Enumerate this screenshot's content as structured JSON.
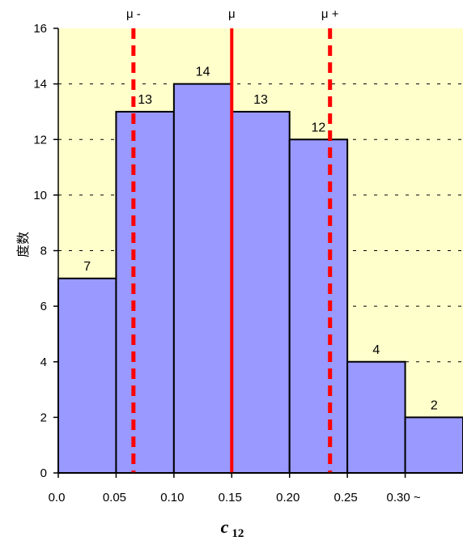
{
  "chart_data": {
    "type": "bar",
    "categories": [
      "0.0",
      "0.05",
      "0.10",
      "0.15",
      "0.20",
      "0.25",
      "0.30 ~"
    ],
    "values": [
      7,
      13,
      14,
      13,
      12,
      4,
      2
    ],
    "xlabel": "c",
    "xlabel_sub": "12",
    "ylabel": "度数",
    "ylim": [
      0,
      16
    ],
    "yticks": [
      0,
      2,
      4,
      6,
      8,
      10,
      12,
      14,
      16
    ],
    "x_tick_labels": [
      "0.0",
      "0.05",
      "0.10",
      "0.15",
      "0.20",
      "0.25",
      "0.30 ~"
    ],
    "x_tick_values": [
      0.0,
      0.05,
      0.1,
      0.15,
      0.2,
      0.25,
      0.3
    ],
    "xlim": [
      0.0,
      0.35
    ],
    "bin_edges": [
      0.0,
      0.05,
      0.1,
      0.15,
      0.2,
      0.25,
      0.3,
      0.35
    ],
    "data_labels": [
      "7",
      "13",
      "14",
      "13",
      "12",
      "4",
      "2"
    ],
    "grid": "horizontal dashed",
    "reference_lines": [
      {
        "label": "μ -",
        "x": 0.065,
        "style": "dashed",
        "color": "#ff0000"
      },
      {
        "label": "μ",
        "x": 0.15,
        "style": "solid",
        "color": "#ff0000"
      },
      {
        "label": "μ +",
        "x": 0.235,
        "style": "dashed",
        "color": "#ff0000"
      }
    ],
    "colors": {
      "plot_background": "#ffffcc",
      "bar_fill": "#9999ff",
      "bar_stroke": "#000000",
      "reference_line": "#ff0000"
    }
  }
}
